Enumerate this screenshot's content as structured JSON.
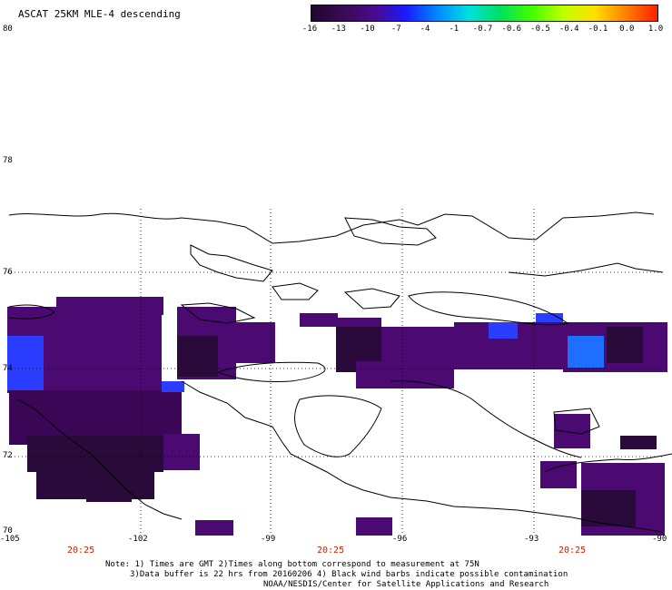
{
  "header": {
    "title": "ASCAT 25KM MLE-4 descending"
  },
  "colorbar": {
    "ticks": [
      "-16",
      "-13",
      "-10",
      "-7",
      "-4",
      "-1",
      "-0.7",
      "-0.6",
      "-0.5",
      "-0.4",
      "-0.1",
      "0.0",
      "1.0"
    ],
    "colors": [
      "#20062e",
      "#3a0a55",
      "#4a0a8a",
      "#1a1aff",
      "#0088ff",
      "#00e0e0",
      "#00e060",
      "#40ff00",
      "#c0ff00",
      "#ffe000",
      "#ff8000",
      "#ff2000"
    ]
  },
  "map": {
    "lat_labels": [
      "80",
      "78",
      "76",
      "74",
      "72",
      "70"
    ],
    "lon_labels": [
      "-105",
      "-102",
      "-99",
      "-96",
      "-93",
      "-90"
    ],
    "time_labels": [
      "20:25",
      "20:25",
      "20:25"
    ],
    "palette": {
      "dark": "#2a0a3a",
      "purple": "#4b0a72",
      "mid": "#3a0655",
      "blue": "#2b3dff",
      "lightblue": "#1e6fff"
    }
  },
  "footer": {
    "note_line1": "Note: 1) Times are GMT 2)Times along bottom correspond to measurement at 75N",
    "note_line2": "3)Data buffer is 22 hrs from 20160206 4) Black wind barbs indicate possible contamination",
    "note_line3": "NOAA/NESDIS/Center for Satellite Applications and Research"
  }
}
